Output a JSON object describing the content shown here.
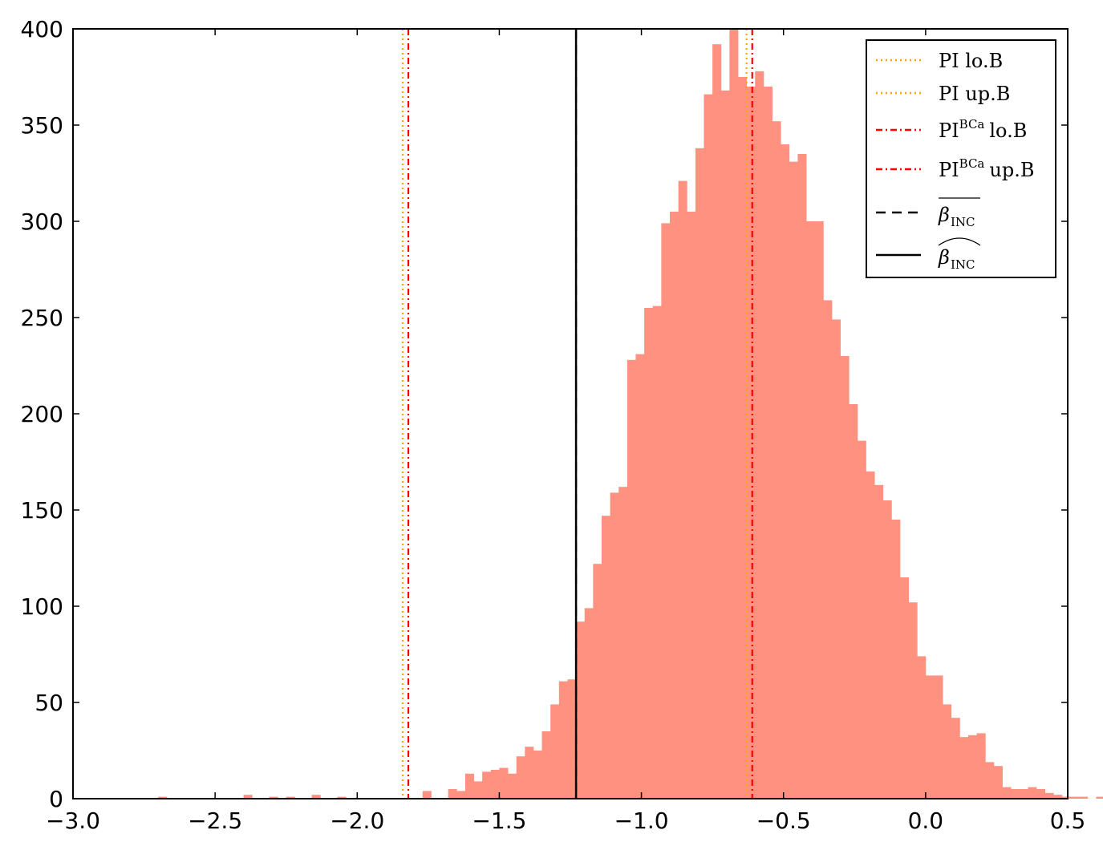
{
  "chart_data": {
    "type": "bar",
    "title": "",
    "xlabel": "",
    "ylabel": "",
    "xlim": [
      -3.0,
      0.5
    ],
    "ylim": [
      0,
      400
    ],
    "xticks": [
      -3.0,
      -2.5,
      -2.0,
      -1.5,
      -1.0,
      -0.5,
      0.0,
      0.5
    ],
    "xtick_labels": [
      "−3.0",
      "−2.5",
      "−2.0",
      "−1.5",
      "−1.0",
      "−0.5",
      "0.0",
      "0.5"
    ],
    "yticks": [
      0,
      50,
      100,
      150,
      200,
      250,
      300,
      350,
      400
    ],
    "ytick_labels": [
      "0",
      "50",
      "100",
      "150",
      "200",
      "250",
      "300",
      "350",
      "400"
    ],
    "grid": false,
    "legend_position": "top-right",
    "bar_color": "#ff9180",
    "histogram": {
      "bin_start": -2.7,
      "bin_width": 0.03,
      "counts": [
        1,
        0,
        0,
        0,
        0,
        0,
        0,
        0,
        0,
        0,
        2,
        0,
        0,
        1,
        0,
        1,
        0,
        0,
        2,
        0,
        0,
        1,
        0,
        0,
        0,
        0,
        0,
        0,
        0,
        0,
        0,
        4,
        0,
        0,
        5,
        4,
        13,
        9,
        14,
        15,
        16,
        13,
        22,
        27,
        25,
        35,
        49,
        61,
        62,
        92,
        99,
        122,
        147,
        159,
        162,
        228,
        231,
        255,
        256,
        299,
        305,
        321,
        305,
        338,
        366,
        392,
        368,
        400,
        375,
        370,
        378,
        370,
        352,
        340,
        331,
        335,
        300,
        300,
        259,
        249,
        230,
        205,
        186,
        170,
        163,
        155,
        145,
        115,
        102,
        74,
        64,
        64,
        49,
        42,
        32,
        33,
        34,
        19,
        17,
        6,
        5,
        5,
        6,
        5,
        3,
        2,
        1,
        1,
        1,
        0,
        1,
        2,
        1,
        0,
        0,
        1,
        0,
        0,
        1,
        0,
        0,
        0,
        0,
        0,
        0,
        0,
        0,
        0,
        1
      ]
    },
    "vlines": [
      {
        "name": "PI lo.B",
        "x": -1.84,
        "color": "#ffa500",
        "style": "dotted"
      },
      {
        "name": "PI up.B",
        "x": -0.63,
        "color": "#ffa500",
        "style": "dotted"
      },
      {
        "name": "PI^BCa lo.B",
        "x": -1.82,
        "color": "#ff0000",
        "style": "dashdot"
      },
      {
        "name": "PI^BCa up.B",
        "x": -0.61,
        "color": "#ff0000",
        "style": "dashdot"
      },
      {
        "name": "beta_INC bar",
        "x": -1.23,
        "color": "#000000",
        "style": "dashed"
      },
      {
        "name": "beta_INC hat",
        "x": -1.23,
        "color": "#000000",
        "style": "solid"
      }
    ],
    "legend": [
      {
        "main": "PI lo.B",
        "sup": "",
        "tail": "",
        "color": "#ffa500",
        "style": "dotted"
      },
      {
        "main": "PI up.B",
        "sup": "",
        "tail": "",
        "color": "#ffa500",
        "style": "dotted"
      },
      {
        "main": "PI",
        "sup": "BCa",
        "tail": "lo.B",
        "color": "#ff0000",
        "style": "dashdot"
      },
      {
        "main": "PI",
        "sup": "BCa",
        "tail": "up.B",
        "color": "#ff0000",
        "style": "dashdot"
      },
      {
        "main": "β",
        "sub": "INC",
        "accent": "bar",
        "color": "#000000",
        "style": "dashed"
      },
      {
        "main": "β",
        "sub": "INC",
        "accent": "hat",
        "color": "#000000",
        "style": "solid"
      }
    ]
  }
}
